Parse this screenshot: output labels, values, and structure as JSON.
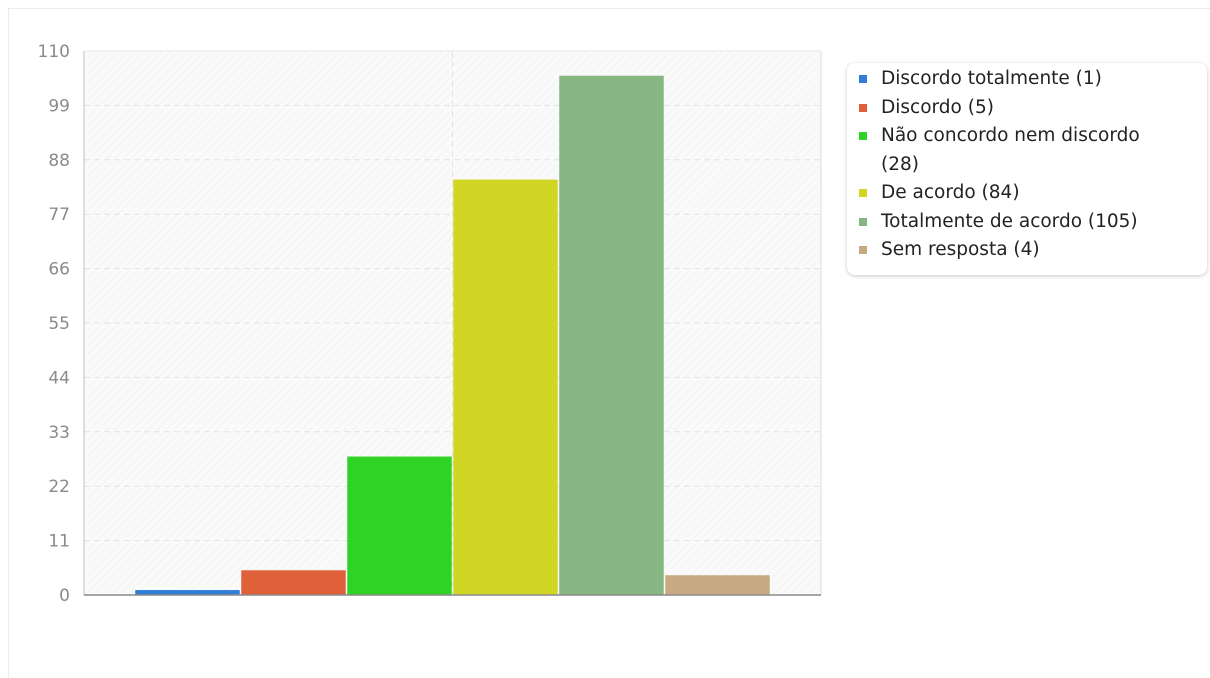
{
  "chart_data": {
    "type": "bar",
    "categories": [
      "Discordo totalmente (1)",
      "Discordo (5)",
      "Não concordo nem discordo (28)",
      "De acordo (84)",
      "Totalmente de acordo (105)",
      "Sem resposta (4)"
    ],
    "values": [
      1,
      5,
      28,
      84,
      105,
      4
    ],
    "colors": [
      "#2f7ed8",
      "#e0603a",
      "#2fd324",
      "#d1d624",
      "#86b783",
      "#c8aa82"
    ],
    "yticks": [
      "0",
      "11",
      "22",
      "33",
      "44",
      "55",
      "66",
      "77",
      "88",
      "99",
      "110"
    ],
    "ylim": [
      0,
      110
    ],
    "grid": true,
    "legend_position": "top-right",
    "title": "",
    "xlabel": "",
    "ylabel": ""
  }
}
